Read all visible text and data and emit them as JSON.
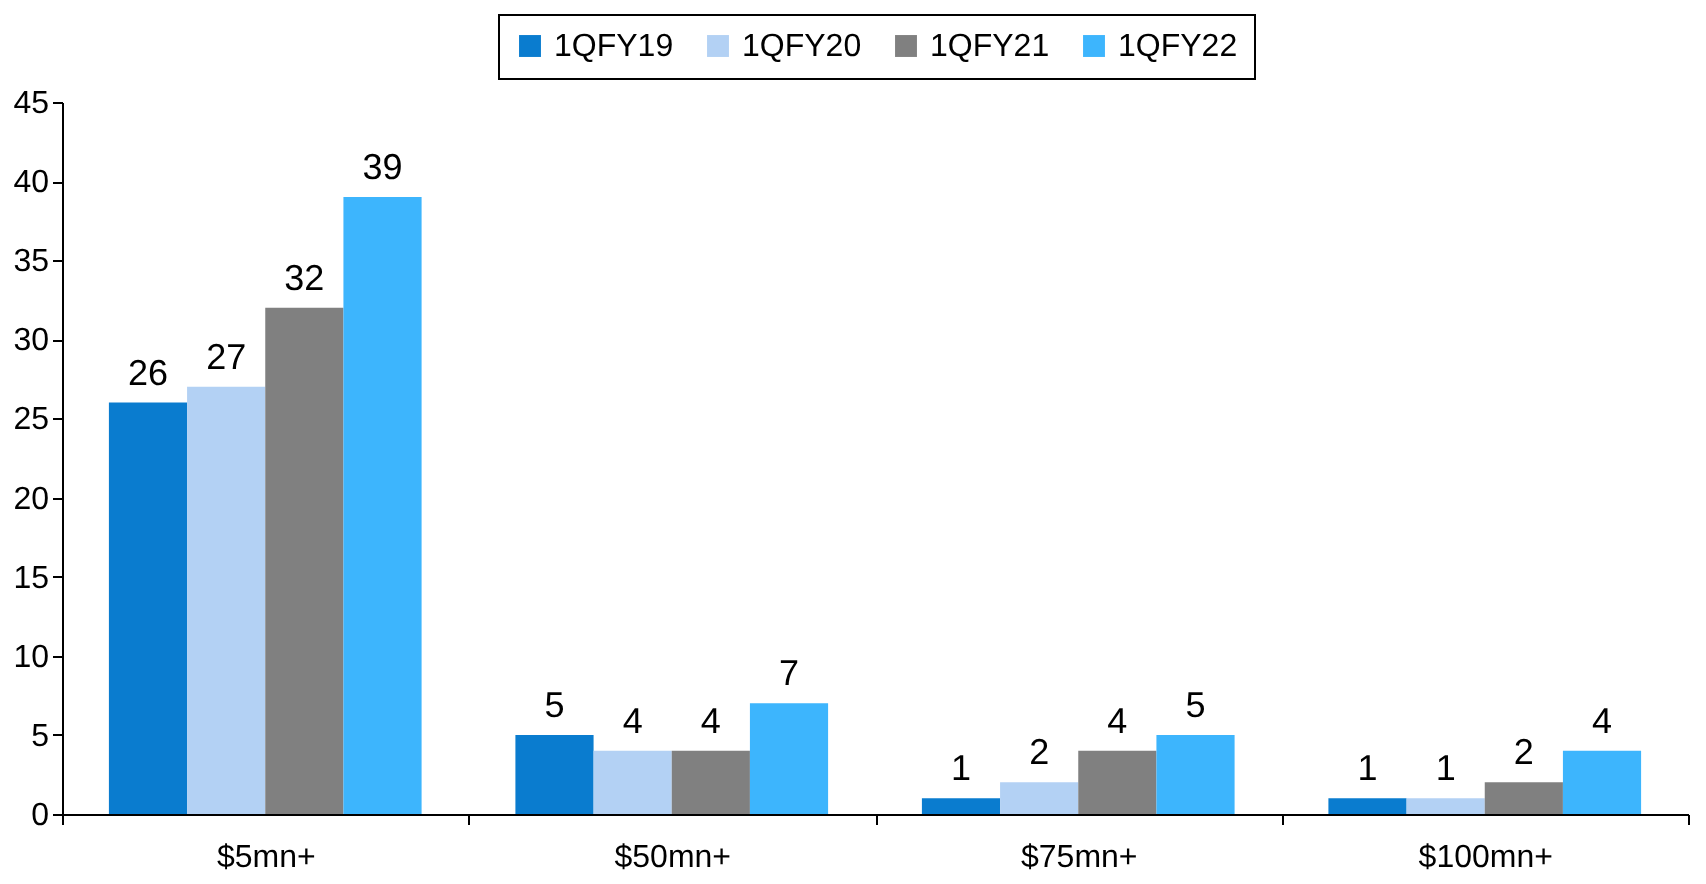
{
  "chart_data": {
    "type": "bar",
    "categories": [
      "$5mn+",
      "$50mn+",
      "$75mn+",
      "$100mn+"
    ],
    "series": [
      {
        "name": "1QFY19",
        "color": "#0a7ccf",
        "values": [
          26,
          5,
          1,
          1
        ]
      },
      {
        "name": "1QFY20",
        "color": "#b3d1f4",
        "values": [
          27,
          4,
          2,
          1
        ]
      },
      {
        "name": "1QFY21",
        "color": "#808080",
        "values": [
          32,
          4,
          4,
          2
        ]
      },
      {
        "name": "1QFY22",
        "color": "#3db5fd",
        "values": [
          39,
          7,
          5,
          4
        ]
      }
    ],
    "ylim": [
      0,
      45
    ],
    "yticks": [
      0,
      5,
      10,
      15,
      20,
      25,
      30,
      35,
      40,
      45
    ],
    "grid": false,
    "legend": "top",
    "data_labels": true
  }
}
